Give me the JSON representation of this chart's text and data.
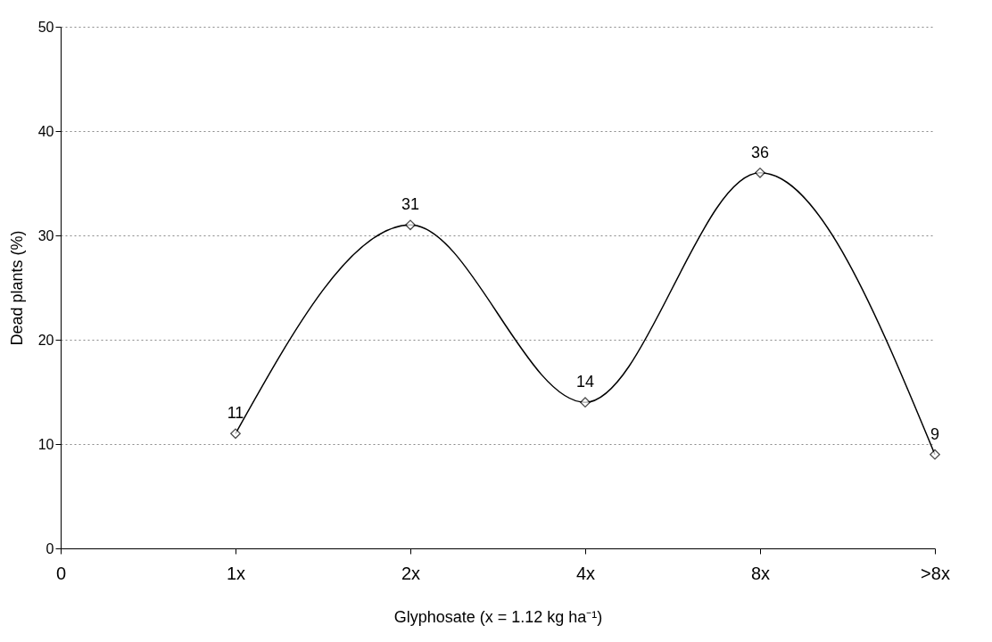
{
  "chart_data": {
    "type": "line",
    "xlabel": "Glyphosate (x = 1.12 kg ha⁻¹)",
    "ylabel": "Dead plants (%)",
    "categories": [
      "0",
      "1x",
      "2x",
      "4x",
      "8x",
      ">8x"
    ],
    "series": [
      {
        "color": "#000000",
        "values": [
          null,
          11,
          31,
          14,
          36,
          9
        ]
      }
    ],
    "ylim": [
      0,
      50
    ],
    "yticks": [
      0,
      10,
      20,
      30,
      40,
      50
    ],
    "grid": "y",
    "marker": "diamond",
    "line_style": "solid",
    "data_labels": true,
    "legend": false
  }
}
